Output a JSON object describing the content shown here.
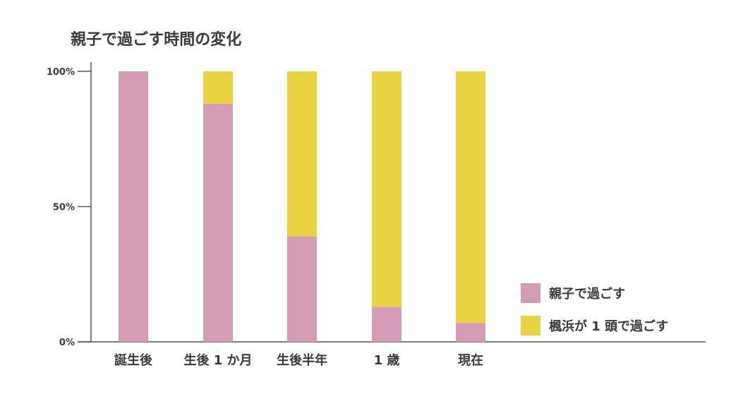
{
  "chart_data": {
    "type": "bar",
    "stacked": true,
    "title": "親子で過ごす時間の変化",
    "categories": [
      "誕生後",
      "生後 1 か月",
      "生後半年",
      "1 歳",
      "現在"
    ],
    "series": [
      {
        "name": "親子で過ごす",
        "values": [
          100,
          88,
          39,
          13,
          7
        ]
      },
      {
        "name": "楓浜が 1 頭で過ごす",
        "values": [
          0,
          12,
          61,
          87,
          93
        ]
      }
    ],
    "yticks": [
      "0%",
      "50%",
      "100%"
    ],
    "ylim": [
      0,
      100
    ],
    "grid": false,
    "legend": "bottom-right",
    "colors": [
      "#d69bb4",
      "#e9d23f"
    ]
  }
}
